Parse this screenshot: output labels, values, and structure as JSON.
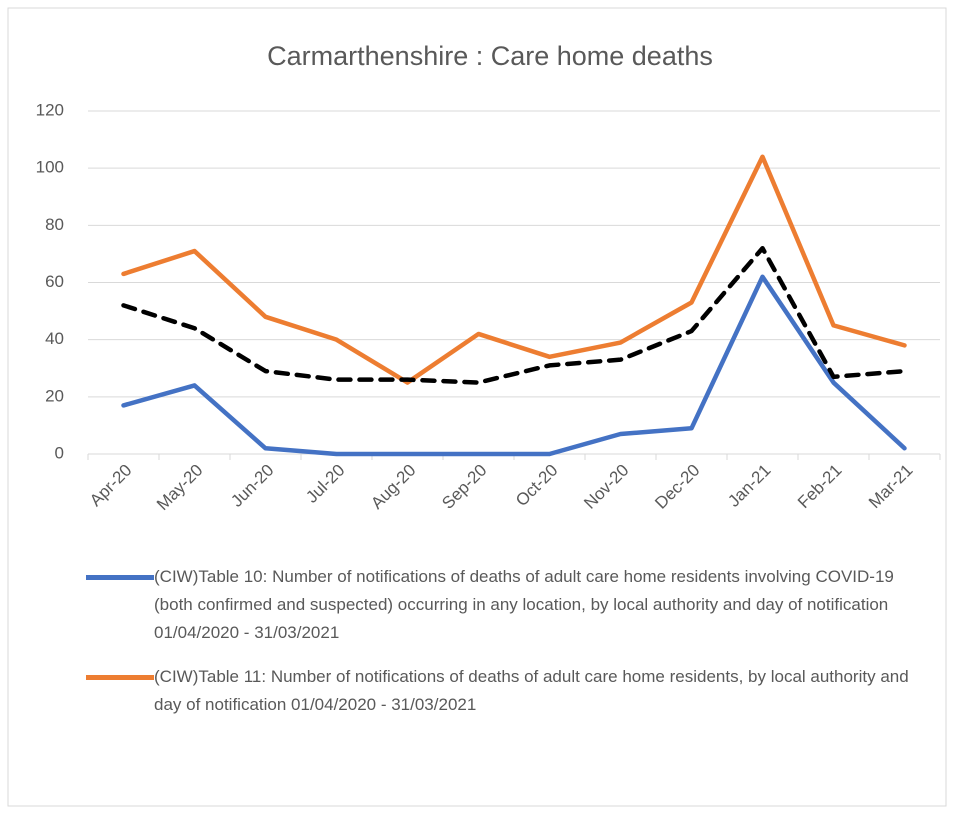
{
  "chart_data": {
    "type": "line",
    "title": "Carmarthenshire : Care home deaths",
    "categories": [
      "Apr-20",
      "May-20",
      "Jun-20",
      "Jul-20",
      "Aug-20",
      "Sep-20",
      "Oct-20",
      "Nov-20",
      "Dec-20",
      "Jan-21",
      "Feb-21",
      "Mar-21"
    ],
    "series": [
      {
        "name": "(CIW)Table 10: Number of notifications of deaths of adult care home residents involving COVID-19 (both confirmed and suspected) occurring in any location, by local authority and day of notification 01/04/2020 - 31/03/2021",
        "color": "#4472c4",
        "values": [
          17,
          24,
          2,
          0,
          0,
          0,
          0,
          7,
          9,
          62,
          25,
          2
        ]
      },
      {
        "name": "(CIW)Table 11: Number of notifications of deaths of adult care home residents, by local authority and day of notification 01/04/2020 - 31/03/2021",
        "color": "#ed7d31",
        "values": [
          63,
          71,
          48,
          40,
          25,
          42,
          34,
          39,
          53,
          104,
          45,
          38
        ]
      },
      {
        "color": "#000000",
        "dashed": true,
        "values": [
          52,
          44,
          29,
          26,
          26,
          25,
          31,
          33,
          43,
          72,
          27,
          29
        ]
      }
    ],
    "ylim": [
      0,
      120
    ],
    "yticks": [
      0,
      20,
      40,
      60,
      80,
      100,
      120
    ],
    "grid": true,
    "legend": "bottom"
  }
}
